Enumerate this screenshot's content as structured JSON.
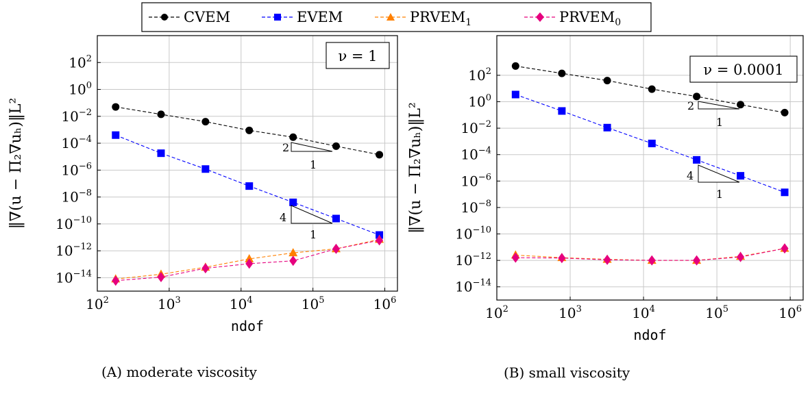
{
  "legend": {
    "entries": [
      {
        "label": "CVEM",
        "color": "#000000",
        "marker": "circle"
      },
      {
        "label": "EVEM",
        "color": "#0000ff",
        "marker": "square"
      },
      {
        "label": "PRVEM",
        "sub": "1",
        "color": "#ff8000",
        "marker": "triangle"
      },
      {
        "label": "PRVEM",
        "sub": "0",
        "color": "#e6007e",
        "marker": "diamond"
      }
    ]
  },
  "chart_data": [
    {
      "type": "line",
      "xscale": "log",
      "yscale": "log",
      "xlabel": "ndof",
      "ylabel": "‖∇(u − Π₂∇uₕ)‖L²",
      "xlim": [
        100,
        1500000
      ],
      "ylim": [
        1e-15,
        10000
      ],
      "xticks": [
        100,
        1000,
        10000,
        100000,
        1000000
      ],
      "yticks": [
        1e-14,
        1e-12,
        1e-10,
        1e-08,
        1e-06,
        0.0001,
        0.01,
        1,
        100
      ],
      "grid": true,
      "annotation": {
        "text": "ν = 1"
      },
      "x": [
        180,
        770,
        3200,
        13000,
        53000,
        210000,
        840000
      ],
      "series": [
        {
          "name": "CVEM",
          "values": [
            0.05,
            0.014,
            0.004,
            0.0009,
            0.00028,
            6e-05,
            1.4e-05
          ]
        },
        {
          "name": "EVEM",
          "values": [
            0.0004,
            1.8e-05,
            1.2e-06,
            6.5e-08,
            4e-09,
            2.5e-10,
            1.5e-11
          ]
        },
        {
          "name": "PRVEM1",
          "values": [
            8e-15,
            1.8e-14,
            6e-14,
            2.5e-13,
            7e-13,
            1.4e-12,
            7e-12
          ]
        },
        {
          "name": "PRVEM0",
          "values": [
            6e-15,
            1.1e-14,
            5e-14,
            1.1e-13,
            1.8e-13,
            1.4e-12,
            6e-12
          ]
        }
      ],
      "slope_triangles": [
        {
          "slope_label": "2",
          "run_label": "1"
        },
        {
          "slope_label": "4",
          "run_label": "1"
        }
      ],
      "caption": "(A) moderate viscosity"
    },
    {
      "type": "line",
      "xscale": "log",
      "yscale": "log",
      "xlabel": "ndof",
      "ylabel": "‖∇(u − Π₂∇uₕ)‖L²",
      "xlim": [
        100,
        1500000
      ],
      "ylim": [
        1e-15,
        100000
      ],
      "xticks": [
        100,
        1000,
        10000,
        100000,
        1000000
      ],
      "yticks": [
        1e-14,
        1e-12,
        1e-10,
        1e-08,
        1e-06,
        0.0001,
        0.01,
        1,
        100
      ],
      "grid": true,
      "annotation": {
        "text": "ν = 0.0001"
      },
      "x": [
        180,
        770,
        3200,
        13000,
        53000,
        210000,
        840000
      ],
      "series": [
        {
          "name": "CVEM",
          "values": [
            500,
            140,
            40,
            9,
            2.5,
            0.6,
            0.15
          ]
        },
        {
          "name": "EVEM",
          "values": [
            3.5,
            0.2,
            0.011,
            0.0007,
            4e-05,
            2.5e-06,
            1.4e-07
          ]
        },
        {
          "name": "PRVEM1",
          "values": [
            2.5e-12,
            1.6e-12,
            1.2e-12,
            1e-12,
            1e-12,
            2e-12,
            8e-12
          ]
        },
        {
          "name": "PRVEM0",
          "values": [
            1.6e-12,
            1.5e-12,
            1.1e-12,
            1e-12,
            1e-12,
            1.8e-12,
            8e-12
          ]
        }
      ],
      "slope_triangles": [
        {
          "slope_label": "2",
          "run_label": "1"
        },
        {
          "slope_label": "4",
          "run_label": "1"
        }
      ],
      "caption": "(B) small viscosity"
    }
  ]
}
